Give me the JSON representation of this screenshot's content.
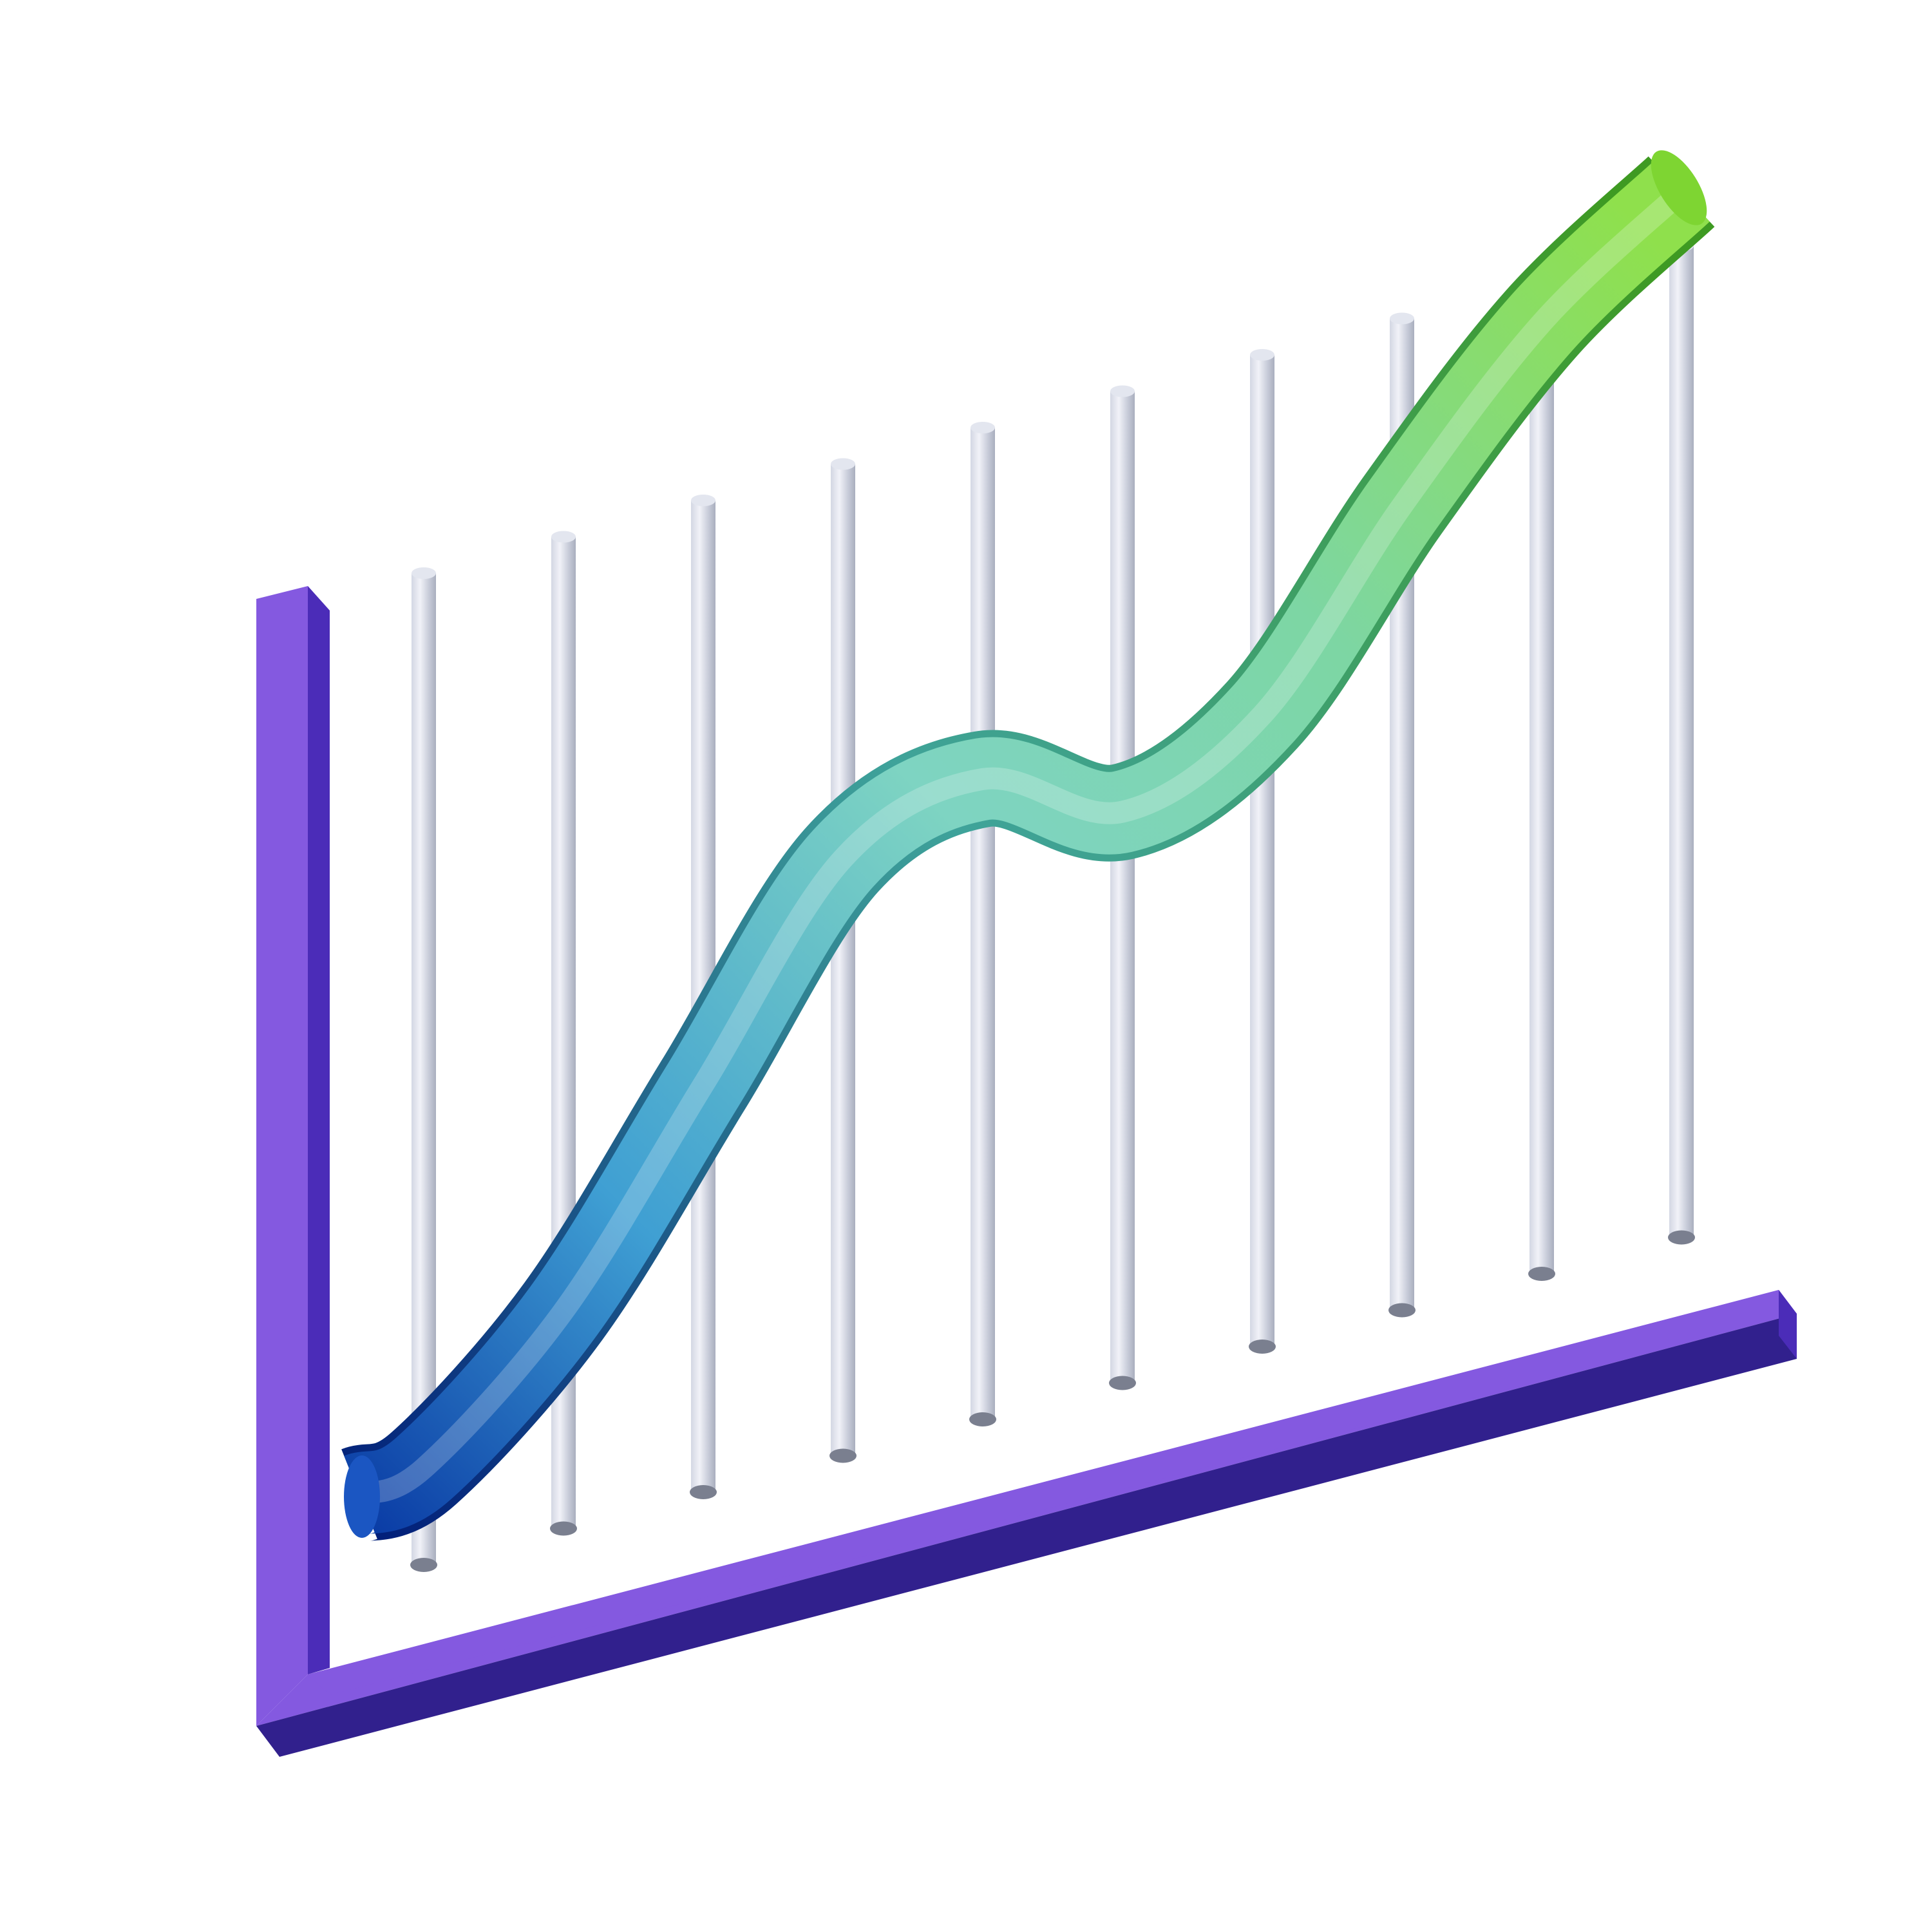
{
  "chart_data": {
    "type": "line",
    "style": "3d-illustration",
    "title": "",
    "xlabel": "",
    "ylabel": "",
    "x_gridlines": 10,
    "grid": true,
    "legend": "none",
    "ylim": [
      0,
      100
    ],
    "series": [
      {
        "x": [
          0,
          1,
          2,
          3,
          4,
          5,
          6,
          7,
          8,
          9
        ],
        "values": [
          0,
          14,
          36,
          58,
          63,
          55,
          62,
          82,
          99,
          110
        ]
      }
    ]
  },
  "colors": {
    "axis_face": "#8459E0",
    "axis_side": "#4B2CB8",
    "axis_dark": "#31208D",
    "rod_light": "#EEF0F6",
    "rod_mid": "#D3D7E3",
    "rod_dark": "#A9AEBE",
    "line_start": "#0B3DA6",
    "line_mid_1": "#3F9FD3",
    "line_mid_2": "#7ED4C2",
    "line_end": "#8FE04C",
    "line_tip": "#7ED532"
  }
}
